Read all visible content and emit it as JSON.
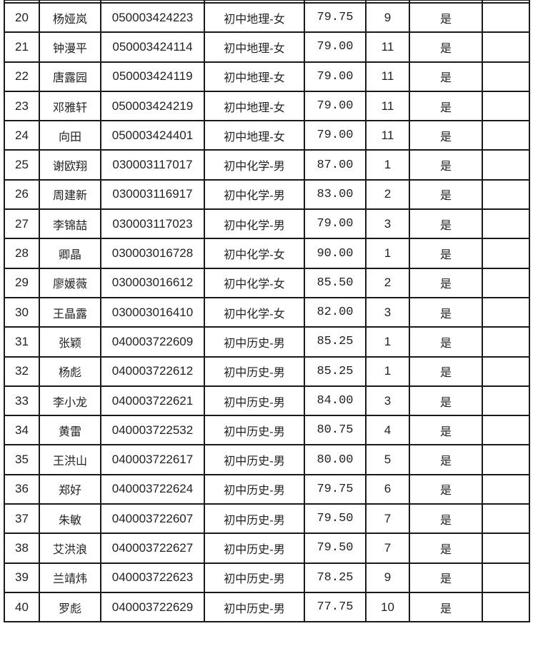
{
  "rows": [
    [
      "20",
      "杨娅岚",
      "050003424223",
      "初中地理-女",
      "79.75",
      "9",
      "是",
      ""
    ],
    [
      "21",
      "钟漫平",
      "050003424114",
      "初中地理-女",
      "79.00",
      "11",
      "是",
      ""
    ],
    [
      "22",
      "唐露园",
      "050003424119",
      "初中地理-女",
      "79.00",
      "11",
      "是",
      ""
    ],
    [
      "23",
      "邓雅轩",
      "050003424219",
      "初中地理-女",
      "79.00",
      "11",
      "是",
      ""
    ],
    [
      "24",
      "向田",
      "050003424401",
      "初中地理-女",
      "79.00",
      "11",
      "是",
      ""
    ],
    [
      "25",
      "谢欧翔",
      "030003117017",
      "初中化学-男",
      "87.00",
      "1",
      "是",
      ""
    ],
    [
      "26",
      "周建新",
      "030003116917",
      "初中化学-男",
      "83.00",
      "2",
      "是",
      ""
    ],
    [
      "27",
      "李锦喆",
      "030003117023",
      "初中化学-男",
      "79.00",
      "3",
      "是",
      ""
    ],
    [
      "28",
      "卿晶",
      "030003016728",
      "初中化学-女",
      "90.00",
      "1",
      "是",
      ""
    ],
    [
      "29",
      "廖媛薇",
      "030003016612",
      "初中化学-女",
      "85.50",
      "2",
      "是",
      ""
    ],
    [
      "30",
      "王晶露",
      "030003016410",
      "初中化学-女",
      "82.00",
      "3",
      "是",
      ""
    ],
    [
      "31",
      "张颖",
      "040003722609",
      "初中历史-男",
      "85.25",
      "1",
      "是",
      ""
    ],
    [
      "32",
      "杨彪",
      "040003722612",
      "初中历史-男",
      "85.25",
      "1",
      "是",
      ""
    ],
    [
      "33",
      "李小龙",
      "040003722621",
      "初中历史-男",
      "84.00",
      "3",
      "是",
      ""
    ],
    [
      "34",
      "黄雷",
      "040003722532",
      "初中历史-男",
      "80.75",
      "4",
      "是",
      ""
    ],
    [
      "35",
      "王洪山",
      "040003722617",
      "初中历史-男",
      "80.00",
      "5",
      "是",
      ""
    ],
    [
      "36",
      "郑好",
      "040003722624",
      "初中历史-男",
      "79.75",
      "6",
      "是",
      ""
    ],
    [
      "37",
      "朱敏",
      "040003722607",
      "初中历史-男",
      "79.50",
      "7",
      "是",
      ""
    ],
    [
      "38",
      "艾洪浪",
      "040003722627",
      "初中历史-男",
      "79.50",
      "7",
      "是",
      ""
    ],
    [
      "39",
      "兰靖炜",
      "040003722623",
      "初中历史-男",
      "78.25",
      "9",
      "是",
      ""
    ],
    [
      "40",
      "罗彪",
      "040003722629",
      "初中历史-男",
      "77.75",
      "10",
      "是",
      ""
    ]
  ]
}
